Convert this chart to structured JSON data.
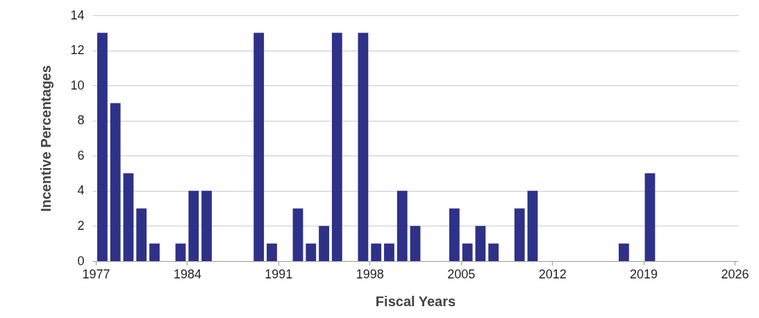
{
  "chart_data": {
    "type": "bar",
    "xlabel": "Fiscal Years",
    "ylabel": "Incentive Percentages",
    "x": [
      1977.5,
      1978.5,
      1979.5,
      1980.5,
      1981.5,
      1983.5,
      1984.5,
      1985.5,
      1989.5,
      1990.5,
      1992.5,
      1993.5,
      1994.5,
      1995.5,
      1997.5,
      1998.5,
      1999.5,
      2000.5,
      2001.5,
      2004.5,
      2005.5,
      2006.5,
      2007.5,
      2009.5,
      2010.5,
      2017.5,
      2019.5
    ],
    "values": [
      13,
      9,
      5,
      3,
      1,
      1,
      4,
      4,
      13,
      1,
      3,
      1,
      2,
      13,
      13,
      1,
      1,
      4,
      2,
      3,
      1,
      2,
      1,
      3,
      4,
      1,
      5
    ],
    "color": "#2e3188",
    "xlim": [
      1977,
      2026
    ],
    "xticks": [
      1977,
      1984,
      1991,
      1998,
      2005,
      2012,
      2019,
      2026
    ],
    "ylim": [
      0,
      14
    ],
    "yticks": [
      0,
      2,
      4,
      6,
      8,
      10,
      12,
      14
    ],
    "grid": "y"
  }
}
